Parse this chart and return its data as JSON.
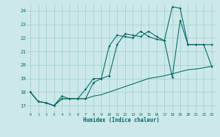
{
  "xlabel": "Humidex (Indice chaleur)",
  "background_color": "#cce8e8",
  "grid_color": "#99cccc",
  "line_color": "#006666",
  "xlim": [
    -0.5,
    23.5
  ],
  "ylim": [
    16.5,
    24.5
  ],
  "x_ticks": [
    0,
    1,
    2,
    3,
    4,
    5,
    6,
    7,
    8,
    9,
    10,
    11,
    12,
    13,
    14,
    15,
    16,
    17,
    18,
    19,
    20,
    21,
    22,
    23
  ],
  "y_ticks": [
    17,
    18,
    19,
    20,
    21,
    22,
    23,
    24
  ],
  "line1_x": [
    0,
    1,
    2,
    3,
    4,
    5,
    6,
    7,
    8,
    9,
    10,
    11,
    12,
    13,
    14,
    15,
    16,
    17,
    18,
    19,
    20,
    21,
    22,
    23
  ],
  "line1_y": [
    18,
    17.3,
    17.2,
    17.0,
    17.5,
    17.5,
    17.5,
    17.5,
    18.7,
    19.0,
    19.2,
    21.5,
    22.3,
    22.2,
    22.1,
    22.5,
    22.1,
    21.8,
    19.1,
    23.3,
    21.5,
    21.5,
    21.5,
    19.9
  ],
  "line2_x": [
    0,
    1,
    2,
    3,
    4,
    5,
    6,
    7,
    8,
    9,
    10,
    11,
    12,
    13,
    14,
    15,
    16,
    17,
    18,
    19,
    20,
    21,
    22,
    23
  ],
  "line2_y": [
    18,
    17.3,
    17.2,
    17.0,
    17.7,
    17.5,
    17.5,
    18.2,
    19.0,
    19.0,
    21.4,
    22.2,
    22.1,
    22.0,
    22.5,
    22.1,
    21.9,
    21.8,
    24.3,
    24.2,
    21.5,
    21.5,
    21.5,
    21.5
  ],
  "line3_x": [
    0,
    1,
    2,
    3,
    4,
    5,
    6,
    7,
    8,
    9,
    10,
    11,
    12,
    13,
    14,
    15,
    16,
    17,
    18,
    19,
    20,
    21,
    22,
    23
  ],
  "line3_y": [
    18,
    17.3,
    17.2,
    17.0,
    17.5,
    17.5,
    17.5,
    17.5,
    17.7,
    17.8,
    18.0,
    18.2,
    18.4,
    18.6,
    18.8,
    19.0,
    19.1,
    19.2,
    19.35,
    19.5,
    19.65,
    19.7,
    19.8,
    19.9
  ]
}
